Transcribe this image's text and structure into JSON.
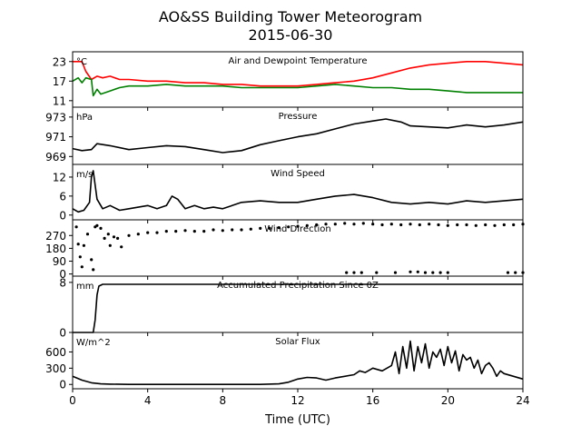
{
  "figure": {
    "title_line1": "AO&SS Building Tower Meteorogram",
    "title_line2": "2015-06-30",
    "xlabel": "Time (UTC)",
    "xticks": [
      "0",
      "4",
      "8",
      "12",
      "16",
      "20",
      "24"
    ],
    "xlim": [
      0,
      24
    ]
  },
  "chart_data": [
    {
      "type": "line",
      "title": "Air and Dewpoint Temperature",
      "unit": "°C",
      "ylim": [
        9,
        26
      ],
      "yticks": [
        11,
        17,
        23
      ],
      "xlim": [
        0,
        24
      ],
      "series": [
        {
          "color": "#ff0000",
          "x": [
            0,
            0.5,
            0.7,
            1.0,
            1.3,
            1.6,
            2.0,
            2.5,
            3,
            4,
            5,
            6,
            7,
            8,
            9,
            10,
            11,
            12,
            13,
            14,
            15,
            16,
            17,
            18,
            19,
            20,
            21,
            22,
            23,
            24
          ],
          "y": [
            23,
            23,
            20,
            17.5,
            18.5,
            18,
            18.5,
            17.5,
            17.5,
            17,
            17,
            16.5,
            16.5,
            16,
            16,
            15.5,
            15.5,
            15.5,
            16,
            16.5,
            17,
            18,
            19.5,
            21,
            22,
            22.5,
            23,
            23,
            22.5,
            22
          ]
        },
        {
          "color": "#008000",
          "x": [
            0,
            0.3,
            0.5,
            0.7,
            1.0,
            1.1,
            1.3,
            1.5,
            2.0,
            2.5,
            3,
            4,
            5,
            6,
            7,
            8,
            9,
            10,
            11,
            12,
            13,
            14,
            15,
            16,
            17,
            18,
            19,
            20,
            21,
            22,
            23,
            24
          ],
          "y": [
            17,
            18,
            16.5,
            18,
            17.5,
            12.5,
            14.5,
            13,
            14,
            15,
            15.5,
            15.5,
            16,
            15.5,
            15.5,
            15.5,
            15,
            15,
            15,
            15,
            15.5,
            16,
            15.5,
            15,
            15,
            14.5,
            14.5,
            14,
            13.5,
            13.5,
            13.5,
            13.5
          ]
        }
      ]
    },
    {
      "type": "line",
      "title": "Pressure",
      "unit": "hPa",
      "ylim": [
        968.2,
        974.0
      ],
      "yticks": [
        969,
        971,
        973
      ],
      "xlim": [
        0,
        24
      ],
      "series": [
        {
          "color": "#000000",
          "x": [
            0,
            0.5,
            1,
            1.3,
            2,
            3,
            4,
            5,
            6,
            7,
            8,
            9,
            10,
            11,
            12,
            13,
            14,
            15,
            16,
            16.7,
            17.5,
            18,
            19,
            20,
            21,
            22,
            23,
            24
          ],
          "y": [
            969.8,
            969.6,
            969.7,
            970.3,
            970.1,
            969.7,
            969.9,
            970.1,
            970.0,
            969.7,
            969.4,
            969.6,
            970.2,
            970.6,
            971.0,
            971.3,
            971.8,
            972.3,
            972.6,
            972.8,
            972.5,
            972.1,
            972.0,
            971.9,
            972.2,
            972.0,
            972.2,
            972.5
          ]
        }
      ]
    },
    {
      "type": "line",
      "title": "Wind Speed",
      "unit": "m/s",
      "ylim": [
        -1.5,
        16
      ],
      "yticks": [
        0,
        6,
        12
      ],
      "xlim": [
        0,
        24
      ],
      "series": [
        {
          "color": "#000000",
          "x": [
            0,
            0.3,
            0.6,
            0.9,
            1.0,
            1.1,
            1.3,
            1.6,
            2,
            2.5,
            3,
            3.5,
            4,
            4.5,
            5,
            5.3,
            5.6,
            6,
            6.5,
            7,
            7.5,
            8,
            8.5,
            9,
            10,
            11,
            12,
            13,
            14,
            15,
            16,
            17,
            18,
            19,
            20,
            21,
            22,
            23,
            24
          ],
          "y": [
            2,
            1,
            1.5,
            4,
            12,
            14,
            5,
            2,
            3,
            1.5,
            2,
            2.5,
            3,
            2,
            3,
            6,
            5,
            2,
            3,
            2,
            2.5,
            2,
            3,
            4,
            4.5,
            4,
            4,
            5,
            6,
            6.5,
            5.5,
            4,
            3.5,
            4,
            3.5,
            4.5,
            4,
            4.5,
            5
          ]
        }
      ]
    },
    {
      "type": "scatter",
      "title": "Wind Direction",
      "ylim": [
        -15,
        380
      ],
      "yticks": [
        0,
        90,
        180,
        270
      ],
      "xlim": [
        0,
        24
      ],
      "series": [
        {
          "color": "#000000",
          "x": [
            0.2,
            0.3,
            0.4,
            0.5,
            0.6,
            0.8,
            1.0,
            1.1,
            1.2,
            1.3,
            1.5,
            1.7,
            1.9,
            2.0,
            2.2,
            2.4,
            2.6,
            3,
            3.5,
            4,
            4.5,
            5,
            5.5,
            6,
            6.5,
            7,
            7.5,
            8,
            8.5,
            9,
            9.5,
            10,
            10.5,
            11,
            11.5,
            12,
            12.5,
            13,
            13.5,
            14,
            14.5,
            15,
            15.5,
            16,
            16.5,
            17,
            17.5,
            18,
            18.5,
            19,
            19.5,
            20,
            20.5,
            21,
            21.5,
            22,
            22.5,
            23,
            23.5,
            24,
            14.6,
            15.0,
            15.4,
            16.2,
            17.2,
            18.0,
            18.4,
            18.8,
            19.2,
            19.6,
            20.0,
            23.2,
            23.6,
            24.0
          ],
          "y": [
            330,
            210,
            120,
            50,
            200,
            280,
            100,
            30,
            330,
            340,
            320,
            250,
            280,
            200,
            260,
            250,
            190,
            270,
            280,
            290,
            290,
            300,
            300,
            305,
            300,
            300,
            310,
            305,
            310,
            310,
            315,
            320,
            320,
            325,
            330,
            335,
            340,
            345,
            350,
            350,
            355,
            350,
            355,
            350,
            345,
            350,
            345,
            350,
            345,
            350,
            345,
            340,
            345,
            345,
            340,
            345,
            340,
            345,
            345,
            350,
            10,
            10,
            10,
            10,
            10,
            15,
            15,
            10,
            10,
            10,
            10,
            10,
            10,
            10
          ]
        }
      ]
    },
    {
      "type": "line",
      "title": "Accumulated Precipitation Since 0Z",
      "unit": "mm",
      "ylim": [
        0,
        9
      ],
      "yticks": [
        0,
        8
      ],
      "xlim": [
        0,
        24
      ],
      "series": [
        {
          "color": "#000000",
          "x": [
            0,
            1.1,
            1.2,
            1.3,
            1.4,
            1.6,
            2,
            24
          ],
          "y": [
            0,
            0,
            2,
            6,
            7.4,
            7.7,
            7.7,
            7.7
          ]
        }
      ]
    },
    {
      "type": "line",
      "title": "Solar Flux",
      "unit": "W/m^2",
      "ylim": [
        -80,
        960
      ],
      "yticks": [
        0,
        300,
        600
      ],
      "xlim": [
        0,
        24
      ],
      "series": [
        {
          "color": "#000000",
          "x": [
            0,
            0.5,
            1,
            1.5,
            2,
            3,
            4,
            5,
            6,
            7,
            8,
            9,
            10,
            11,
            11.5,
            12,
            12.5,
            13,
            13.5,
            14,
            14.5,
            15,
            15.3,
            15.6,
            16,
            16.5,
            17,
            17.2,
            17.4,
            17.6,
            17.8,
            18,
            18.2,
            18.4,
            18.6,
            18.8,
            19,
            19.2,
            19.4,
            19.6,
            19.8,
            20,
            20.2,
            20.4,
            20.6,
            20.8,
            21,
            21.2,
            21.4,
            21.6,
            21.8,
            22,
            22.2,
            22.4,
            22.6,
            22.8,
            23,
            23.5,
            24
          ],
          "y": [
            150,
            80,
            30,
            10,
            5,
            0,
            0,
            0,
            0,
            0,
            0,
            0,
            0,
            10,
            40,
            100,
            130,
            120,
            80,
            120,
            150,
            180,
            250,
            220,
            300,
            250,
            350,
            600,
            200,
            700,
            300,
            800,
            250,
            700,
            400,
            750,
            300,
            600,
            500,
            650,
            350,
            700,
            400,
            620,
            250,
            550,
            450,
            500,
            300,
            450,
            200,
            350,
            400,
            300,
            150,
            250,
            200,
            150,
            100
          ]
        }
      ]
    }
  ]
}
